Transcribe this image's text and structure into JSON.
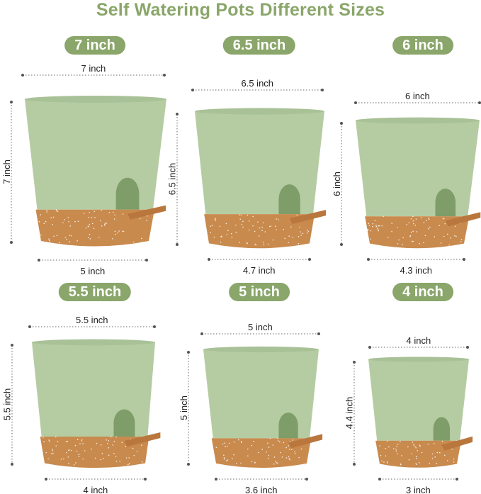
{
  "title": "Self Watering Pots Different Sizes",
  "colors": {
    "title": "#8aa66a",
    "badge": "#8aa66a",
    "pot_green": "#b5cca3",
    "saucer": "#c98a4e",
    "window": "#7f9d68"
  },
  "pots": [
    {
      "badge": "7 inch",
      "top_width": "7 inch",
      "height": "7 inch",
      "bottom_width": "5 inch"
    },
    {
      "badge": "6.5 inch",
      "top_width": "6.5 inch",
      "height": "6.5 inch",
      "bottom_width": "4.7 inch"
    },
    {
      "badge": "6 inch",
      "top_width": "6 inch",
      "height": "6 inch",
      "bottom_width": "4.3 inch"
    },
    {
      "badge": "5.5 inch",
      "top_width": "5.5 inch",
      "height": "5.5 inch",
      "bottom_width": "4 inch"
    },
    {
      "badge": "5 inch",
      "top_width": "5 inch",
      "height": "5 inch",
      "bottom_width": "3.6 inch"
    },
    {
      "badge": "4 inch",
      "top_width": "4 inch",
      "height": "4.4 inch",
      "bottom_width": "3 inch"
    }
  ]
}
